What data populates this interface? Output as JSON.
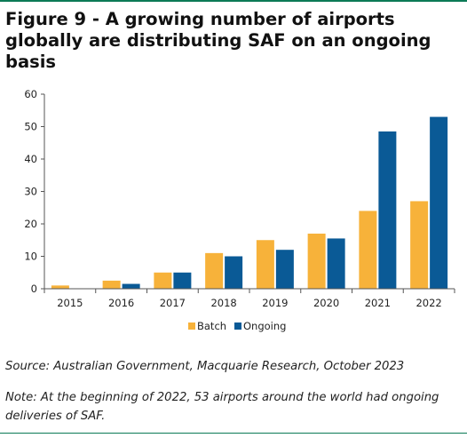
{
  "figure": {
    "title": "Figure 9 - A growing number of airports globally are distributing SAF on an ongoing basis",
    "source": "Source: Australian Government, Macquarie Research, October 2023",
    "note": "Note: At the beginning of 2022, 53 airports around the world had ongoing deliveries of SAF."
  },
  "colors": {
    "accent_line": "#0b7a56",
    "batch": "#f7b23a",
    "ongoing": "#0a5a96"
  },
  "chart_data": {
    "type": "bar",
    "categories": [
      "2015",
      "2016",
      "2017",
      "2018",
      "2019",
      "2020",
      "2021",
      "2022"
    ],
    "series": [
      {
        "name": "Batch",
        "values": [
          1,
          2.5,
          5,
          11,
          15,
          17,
          24,
          27
        ]
      },
      {
        "name": "Ongoing",
        "values": [
          0,
          1.5,
          5,
          10,
          12,
          15.5,
          48.5,
          53
        ]
      }
    ],
    "yticks": [
      0,
      10,
      20,
      30,
      40,
      50,
      60
    ],
    "ylim": [
      0,
      60
    ],
    "legend": "bottom-center",
    "grid": false
  }
}
